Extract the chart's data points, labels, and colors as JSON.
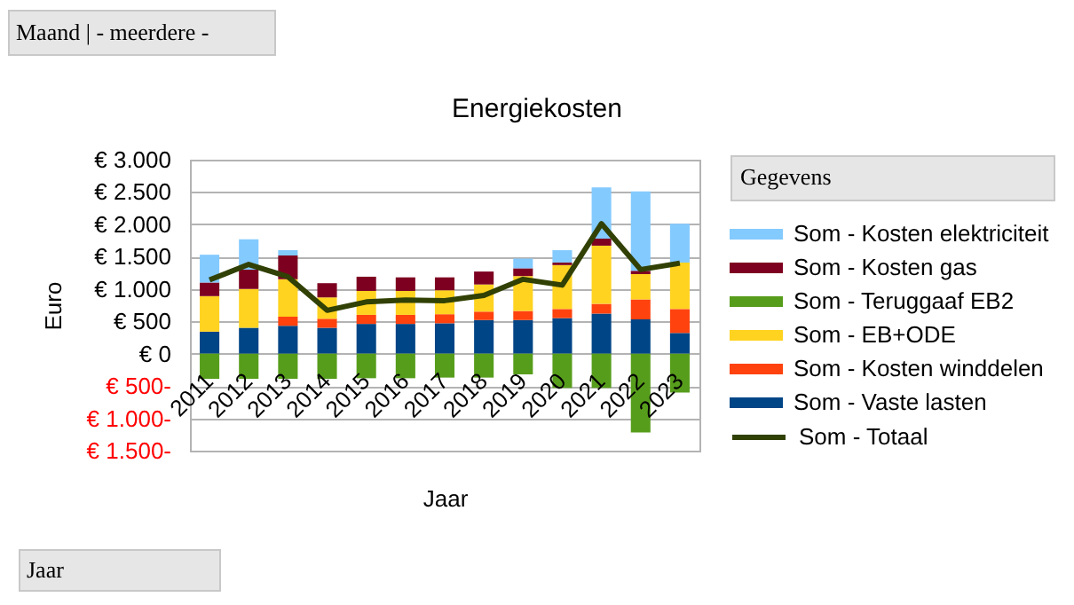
{
  "chart_data": {
    "type": "bar",
    "title": "Energiekosten",
    "xlabel": "Jaar",
    "ylabel": "Euro",
    "legend_title": "Gegevens",
    "annotations": [
      "Maand | - meerdere -",
      "Jaar"
    ],
    "categories": [
      "2011",
      "2012",
      "2013",
      "2014",
      "2015",
      "2016",
      "2017",
      "2018",
      "2019",
      "2020",
      "2021",
      "2022",
      "2023"
    ],
    "stacked": true,
    "series": [
      {
        "name": "Som - Vaste lasten",
        "color": "#004586",
        "values": [
          340,
          400,
          430,
          400,
          460,
          460,
          470,
          520,
          520,
          550,
          620,
          530,
          320
        ]
      },
      {
        "name": "Som - Kosten winddelen",
        "color": "#ff420e",
        "values": [
          null,
          null,
          140,
          140,
          140,
          140,
          140,
          130,
          140,
          140,
          150,
          310,
          370
        ]
      },
      {
        "name": "Som - EB+ODE",
        "color": "#ffd320",
        "values": [
          550,
          600,
          580,
          330,
          370,
          370,
          370,
          420,
          540,
          680,
          900,
          390,
          720
        ]
      },
      {
        "name": "Som - Teruggaaf EB2",
        "color": "#579d1c",
        "values": [
          -390,
          -390,
          -390,
          -390,
          -380,
          -380,
          -370,
          -370,
          -320,
          -530,
          -530,
          -1220,
          -600
        ]
      },
      {
        "name": "Som - Kosten gas",
        "color": "#7e0021",
        "values": [
          210,
          300,
          370,
          220,
          220,
          210,
          200,
          200,
          120,
          40,
          110,
          50,
          null
        ]
      },
      {
        "name": "Som - Kosten elektriciteit",
        "color": "#83caff",
        "values": [
          430,
          470,
          80,
          null,
          null,
          null,
          null,
          null,
          150,
          190,
          790,
          1230,
          600
        ]
      },
      {
        "name": "Som - Totaal",
        "type": "line",
        "color": "#314004",
        "values": [
          1140,
          1380,
          1190,
          670,
          800,
          830,
          820,
          900,
          1150,
          1060,
          2010,
          1300,
          1400
        ]
      }
    ],
    "ylim": [
      -1500,
      3000
    ],
    "yticks": [
      {
        "value": -1500,
        "label": "€ 1.500-"
      },
      {
        "value": -1000,
        "label": "€ 1.000-"
      },
      {
        "value": -500,
        "label": "€ 500-"
      },
      {
        "value": 0,
        "label": "€ 0"
      },
      {
        "value": 500,
        "label": "€ 500"
      },
      {
        "value": 1000,
        "label": "€ 1.000"
      },
      {
        "value": 1500,
        "label": "€ 1.500"
      },
      {
        "value": 2000,
        "label": "€ 2.000"
      },
      {
        "value": 2500,
        "label": "€ 2.500"
      },
      {
        "value": 3000,
        "label": "€ 3.000"
      }
    ],
    "grid": "y",
    "legend": "right"
  }
}
